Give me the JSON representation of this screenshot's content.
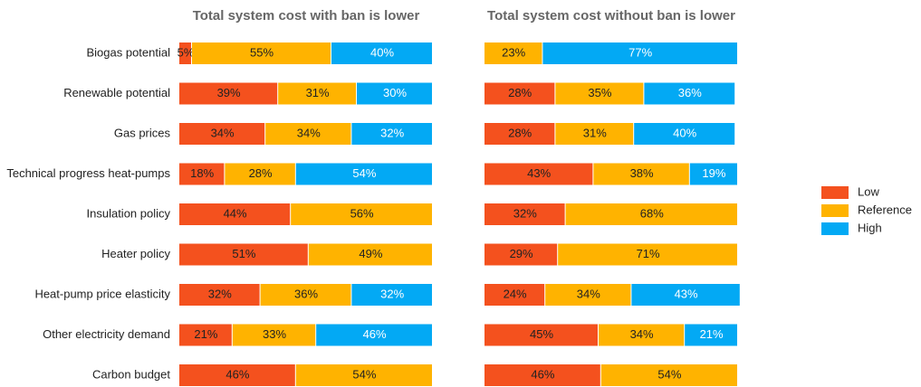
{
  "chart_data": [
    {
      "type": "stacked-bar",
      "orientation": "horizontal",
      "title": "Total system cost with ban is lower",
      "categories": [
        "Biogas potential",
        "Renewable potential",
        "Gas prices",
        "Technical progress heat-pumps",
        "Insulation policy",
        "Heater policy",
        "Heat-pump price elasticity",
        "Other electricity demand",
        "Carbon budget"
      ],
      "xlim": [
        0,
        100
      ],
      "series": [
        {
          "name": "Low",
          "color": "#f4511e",
          "values": [
            5,
            39,
            34,
            18,
            44,
            51,
            32,
            21,
            46
          ],
          "value_labels": [
            "5%",
            "39%",
            "34%",
            "18%",
            "44%",
            "51%",
            "32%",
            "21%",
            "46%"
          ]
        },
        {
          "name": "Reference",
          "color": "#ffb300",
          "values": [
            55,
            31,
            34,
            28,
            56,
            49,
            36,
            33,
            54
          ],
          "value_labels": [
            "55%",
            "31%",
            "34%",
            "28%",
            "56%",
            "49%",
            "36%",
            "33%",
            "54%"
          ]
        },
        {
          "name": "High",
          "color": "#03a9f4",
          "values": [
            40,
            30,
            32,
            54,
            null,
            null,
            32,
            46,
            null
          ],
          "value_labels": [
            "40%",
            "30%",
            "32%",
            "54%",
            null,
            null,
            "32%",
            "46%",
            null
          ]
        }
      ],
      "legend": "right"
    },
    {
      "type": "stacked-bar",
      "orientation": "horizontal",
      "title": "Total system cost without ban is lower",
      "xlim": [
        0,
        100
      ],
      "series": [
        {
          "name": "Low",
          "color": "#f4511e",
          "values": [
            null,
            28,
            28,
            43,
            32,
            29,
            24,
            45,
            46
          ],
          "value_labels": [
            null,
            "28%",
            "28%",
            "43%",
            "32%",
            "29%",
            "24%",
            "45%",
            "46%"
          ]
        },
        {
          "name": "Reference",
          "color": "#ffb300",
          "values": [
            23,
            35,
            31,
            38,
            68,
            71,
            34,
            34,
            54
          ],
          "value_labels": [
            "23%",
            "35%",
            "31%",
            "38%",
            "68%",
            "71%",
            "34%",
            "34%",
            "54%"
          ]
        },
        {
          "name": "High",
          "color": "#03a9f4",
          "values": [
            77,
            36,
            40,
            19,
            null,
            null,
            43,
            21,
            null
          ],
          "value_labels": [
            "77%",
            "36%",
            "40%",
            "19%",
            null,
            null,
            "43%",
            "21%",
            null
          ]
        }
      ]
    }
  ]
}
